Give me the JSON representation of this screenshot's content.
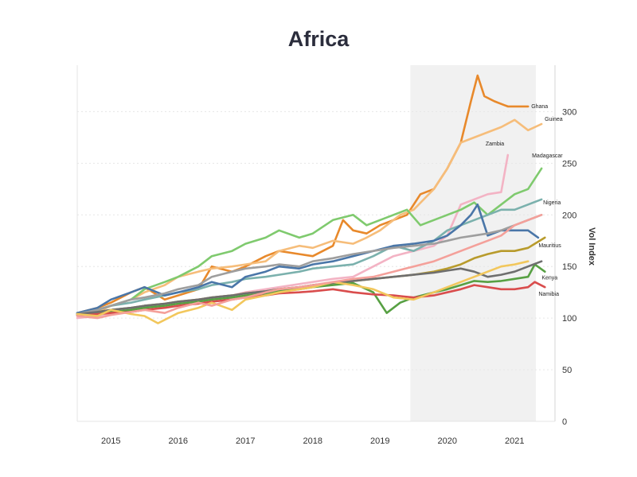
{
  "chart_data": {
    "type": "line",
    "title": "Africa",
    "xlabel": "",
    "ylabel": "Vol Index",
    "x_ticks": [
      "2015",
      "2016",
      "2017",
      "2018",
      "2019",
      "2020",
      "2021"
    ],
    "y_ticks": [
      0,
      50,
      100,
      150,
      200,
      250,
      300
    ],
    "xlim": [
      2014.5,
      2021.6
    ],
    "ylim": [
      0,
      345
    ],
    "grid": true,
    "highlight_band": [
      2019.45,
      2021.6
    ],
    "series": [
      {
        "name": "Ghana",
        "color": "#e8892b",
        "x": [
          2014.5,
          2014.8,
          2015.0,
          2015.3,
          2015.5,
          2015.8,
          2016.0,
          2016.3,
          2016.5,
          2016.8,
          2017.0,
          2017.3,
          2017.5,
          2017.8,
          2018.0,
          2018.3,
          2018.45,
          2018.6,
          2018.8,
          2019.0,
          2019.2,
          2019.4,
          2019.6,
          2019.8,
          2020.0,
          2020.2,
          2020.35,
          2020.45,
          2020.55,
          2020.7,
          2020.9,
          2021.1,
          2021.2
        ],
        "y": [
          105,
          110,
          115,
          125,
          130,
          118,
          122,
          128,
          150,
          145,
          150,
          160,
          165,
          162,
          160,
          170,
          195,
          185,
          182,
          190,
          195,
          200,
          220,
          225,
          245,
          270,
          310,
          335,
          315,
          310,
          305,
          305,
          305
        ]
      },
      {
        "name": "Guinea",
        "color": "#f6bd7a",
        "x": [
          2014.5,
          2014.8,
          2015.0,
          2015.3,
          2015.5,
          2015.8,
          2016.0,
          2016.3,
          2016.5,
          2016.8,
          2017.0,
          2017.3,
          2017.5,
          2017.8,
          2018.0,
          2018.3,
          2018.6,
          2018.8,
          2019.0,
          2019.3,
          2019.5,
          2019.8,
          2020.0,
          2020.2,
          2020.4,
          2020.6,
          2020.8,
          2021.0,
          2021.2,
          2021.4
        ],
        "y": [
          102,
          106,
          112,
          118,
          125,
          132,
          140,
          145,
          148,
          150,
          152,
          155,
          165,
          170,
          168,
          175,
          172,
          178,
          185,
          200,
          205,
          225,
          245,
          270,
          275,
          280,
          285,
          292,
          282,
          288
        ]
      },
      {
        "name": "Zambia",
        "color": "#f3b3c4",
        "x": [
          2014.5,
          2014.8,
          2015.0,
          2015.3,
          2015.5,
          2015.8,
          2016.0,
          2016.3,
          2016.5,
          2016.8,
          2017.0,
          2017.3,
          2017.5,
          2017.8,
          2018.0,
          2018.3,
          2018.6,
          2018.9,
          2019.2,
          2019.5,
          2019.8,
          2020.0,
          2020.2,
          2020.4,
          2020.6,
          2020.8,
          2020.9
        ],
        "y": [
          100,
          102,
          105,
          108,
          112,
          110,
          112,
          118,
          120,
          122,
          125,
          128,
          130,
          133,
          135,
          138,
          140,
          150,
          160,
          165,
          170,
          180,
          210,
          215,
          220,
          222,
          258
        ]
      },
      {
        "name": "Madagascar",
        "color": "#7fca6e",
        "x": [
          2014.5,
          2014.8,
          2015.0,
          2015.3,
          2015.5,
          2015.8,
          2016.0,
          2016.3,
          2016.5,
          2016.8,
          2017.0,
          2017.3,
          2017.5,
          2017.8,
          2018.0,
          2018.3,
          2018.6,
          2018.8,
          2019.0,
          2019.2,
          2019.4,
          2019.6,
          2019.8,
          2020.0,
          2020.2,
          2020.4,
          2020.6,
          2020.8,
          2021.0,
          2021.2,
          2021.4
        ],
        "y": [
          103,
          108,
          112,
          118,
          128,
          135,
          140,
          150,
          160,
          165,
          172,
          178,
          185,
          178,
          182,
          195,
          200,
          190,
          195,
          200,
          205,
          190,
          195,
          200,
          205,
          212,
          200,
          210,
          220,
          225,
          245
        ]
      },
      {
        "name": "Nigeria",
        "color": "#7bb1ad",
        "x": [
          2014.5,
          2014.8,
          2015.0,
          2015.3,
          2015.5,
          2015.8,
          2016.0,
          2016.3,
          2016.5,
          2016.8,
          2017.0,
          2017.3,
          2017.5,
          2017.8,
          2018.0,
          2018.3,
          2018.6,
          2018.9,
          2019.2,
          2019.5,
          2019.8,
          2020.0,
          2020.2,
          2020.4,
          2020.6,
          2020.8,
          2021.0,
          2021.2,
          2021.4
        ],
        "y": [
          105,
          108,
          112,
          115,
          118,
          122,
          125,
          128,
          132,
          135,
          138,
          140,
          142,
          145,
          148,
          150,
          152,
          160,
          170,
          165,
          175,
          185,
          190,
          195,
          200,
          205,
          205,
          210,
          215
        ]
      },
      {
        "name": "Mauritius",
        "color": "#b89b2c",
        "x": [
          2014.5,
          2014.8,
          2015.0,
          2015.3,
          2015.5,
          2015.8,
          2016.0,
          2016.3,
          2016.5,
          2016.8,
          2017.0,
          2017.3,
          2017.5,
          2017.8,
          2018.0,
          2018.3,
          2018.6,
          2018.9,
          2019.2,
          2019.5,
          2019.8,
          2020.0,
          2020.2,
          2020.4,
          2020.6,
          2020.8,
          2021.0,
          2021.2,
          2021.3,
          2021.45
        ],
        "y": [
          104,
          106,
          108,
          110,
          112,
          114,
          116,
          118,
          120,
          122,
          124,
          126,
          128,
          130,
          132,
          134,
          136,
          138,
          140,
          142,
          145,
          148,
          152,
          158,
          162,
          165,
          165,
          168,
          172,
          178
        ]
      },
      {
        "name": "Kenya",
        "color": "#57a043",
        "x": [
          2014.5,
          2014.8,
          2015.0,
          2015.3,
          2015.5,
          2015.8,
          2016.0,
          2016.3,
          2016.5,
          2016.8,
          2017.0,
          2017.3,
          2017.5,
          2017.8,
          2018.0,
          2018.3,
          2018.6,
          2018.9,
          2019.1,
          2019.3,
          2019.5,
          2019.8,
          2020.0,
          2020.2,
          2020.4,
          2020.6,
          2020.8,
          2021.0,
          2021.2,
          2021.3,
          2021.45
        ],
        "y": [
          104,
          105,
          106,
          108,
          110,
          112,
          114,
          116,
          118,
          120,
          122,
          124,
          126,
          128,
          130,
          132,
          134,
          125,
          105,
          115,
          120,
          125,
          128,
          132,
          136,
          135,
          136,
          138,
          140,
          152,
          145
        ]
      },
      {
        "name": "Namibia",
        "color": "#d94d4d",
        "x": [
          2014.5,
          2014.8,
          2015.0,
          2015.3,
          2015.5,
          2015.8,
          2016.0,
          2016.3,
          2016.5,
          2016.8,
          2017.0,
          2017.3,
          2017.5,
          2017.8,
          2018.0,
          2018.3,
          2018.6,
          2018.9,
          2019.2,
          2019.5,
          2019.8,
          2020.0,
          2020.2,
          2020.4,
          2020.6,
          2020.8,
          2021.0,
          2021.2,
          2021.3,
          2021.45
        ],
        "y": [
          103,
          104,
          105,
          106,
          108,
          110,
          112,
          114,
          116,
          118,
          120,
          122,
          124,
          125,
          126,
          128,
          125,
          123,
          122,
          120,
          122,
          125,
          128,
          132,
          130,
          128,
          128,
          130,
          135,
          130
        ]
      },
      {
        "name": "",
        "color": "#4a76a8",
        "x": [
          2014.5,
          2014.8,
          2015.0,
          2015.3,
          2015.5,
          2015.8,
          2016.0,
          2016.3,
          2016.5,
          2016.8,
          2017.0,
          2017.3,
          2017.5,
          2017.8,
          2018.0,
          2018.3,
          2018.6,
          2018.9,
          2019.2,
          2019.5,
          2019.8,
          2020.0,
          2020.2,
          2020.35,
          2020.45,
          2020.6,
          2020.8,
          2021.0,
          2021.2,
          2021.35
        ],
        "y": [
          105,
          110,
          118,
          125,
          130,
          122,
          125,
          130,
          135,
          130,
          140,
          145,
          150,
          148,
          152,
          155,
          160,
          165,
          170,
          172,
          175,
          180,
          190,
          200,
          210,
          180,
          185,
          185,
          185,
          178
        ]
      },
      {
        "name": "",
        "color": "#9e9e9e",
        "x": [
          2014.5,
          2014.8,
          2015.0,
          2015.3,
          2015.5,
          2015.8,
          2016.0,
          2016.3,
          2016.5,
          2016.8,
          2017.0,
          2017.3,
          2017.5,
          2017.8,
          2018.0,
          2018.3,
          2018.6,
          2018.9,
          2019.2,
          2019.5,
          2019.8,
          2020.0,
          2020.2,
          2020.4,
          2020.6,
          2020.8,
          2021.0,
          2021.2,
          2021.4
        ],
        "y": [
          104,
          108,
          112,
          118,
          120,
          124,
          128,
          132,
          140,
          145,
          148,
          150,
          152,
          150,
          155,
          158,
          162,
          165,
          168,
          170,
          172,
          175,
          178,
          180,
          182,
          185,
          190,
          195,
          200
        ]
      },
      {
        "name": "",
        "color": "#6e6e6e",
        "x": [
          2014.5,
          2014.8,
          2015.0,
          2015.3,
          2015.5,
          2015.8,
          2016.0,
          2016.3,
          2016.5,
          2016.8,
          2017.0,
          2017.3,
          2017.5,
          2017.8,
          2018.0,
          2018.3,
          2018.6,
          2018.9,
          2019.2,
          2019.5,
          2019.8,
          2020.0,
          2020.2,
          2020.4,
          2020.6,
          2020.8,
          2021.0,
          2021.2,
          2021.4
        ],
        "y": [
          104,
          106,
          108,
          110,
          112,
          114,
          116,
          118,
          120,
          122,
          124,
          126,
          128,
          130,
          132,
          134,
          136,
          138,
          140,
          142,
          144,
          146,
          148,
          145,
          140,
          142,
          145,
          150,
          155
        ]
      },
      {
        "name": "",
        "color": "#f2c75c",
        "x": [
          2014.5,
          2014.8,
          2015.0,
          2015.3,
          2015.5,
          2015.7,
          2016.0,
          2016.3,
          2016.5,
          2016.8,
          2017.0,
          2017.3,
          2017.5,
          2017.8,
          2018.0,
          2018.3,
          2018.6,
          2018.9,
          2019.2,
          2019.5,
          2019.8,
          2020.0,
          2020.2,
          2020.4,
          2020.6,
          2020.8,
          2021.0,
          2021.2
        ],
        "y": [
          104,
          102,
          108,
          104,
          102,
          95,
          105,
          110,
          115,
          108,
          118,
          122,
          125,
          128,
          130,
          135,
          132,
          128,
          120,
          118,
          125,
          130,
          135,
          140,
          145,
          150,
          152,
          155
        ]
      },
      {
        "name": "",
        "color": "#f4a09a",
        "x": [
          2014.5,
          2014.8,
          2015.0,
          2015.3,
          2015.5,
          2015.8,
          2016.0,
          2016.3,
          2016.5,
          2016.8,
          2017.0,
          2017.3,
          2017.5,
          2017.8,
          2018.0,
          2018.3,
          2018.6,
          2018.9,
          2019.2,
          2019.5,
          2019.8,
          2020.0,
          2020.2,
          2020.4,
          2020.6,
          2020.8,
          2021.0,
          2021.2,
          2021.4
        ],
        "y": [
          102,
          100,
          103,
          106,
          108,
          105,
          110,
          115,
          112,
          118,
          120,
          125,
          128,
          130,
          132,
          135,
          138,
          140,
          145,
          150,
          155,
          160,
          165,
          170,
          175,
          180,
          190,
          195,
          200
        ]
      }
    ],
    "series_labels": [
      "Ghana",
      "Guinea",
      "Zambia",
      "Madagascar",
      "Nigeria",
      "Mauritius",
      "Kenya",
      "Namibia"
    ]
  }
}
